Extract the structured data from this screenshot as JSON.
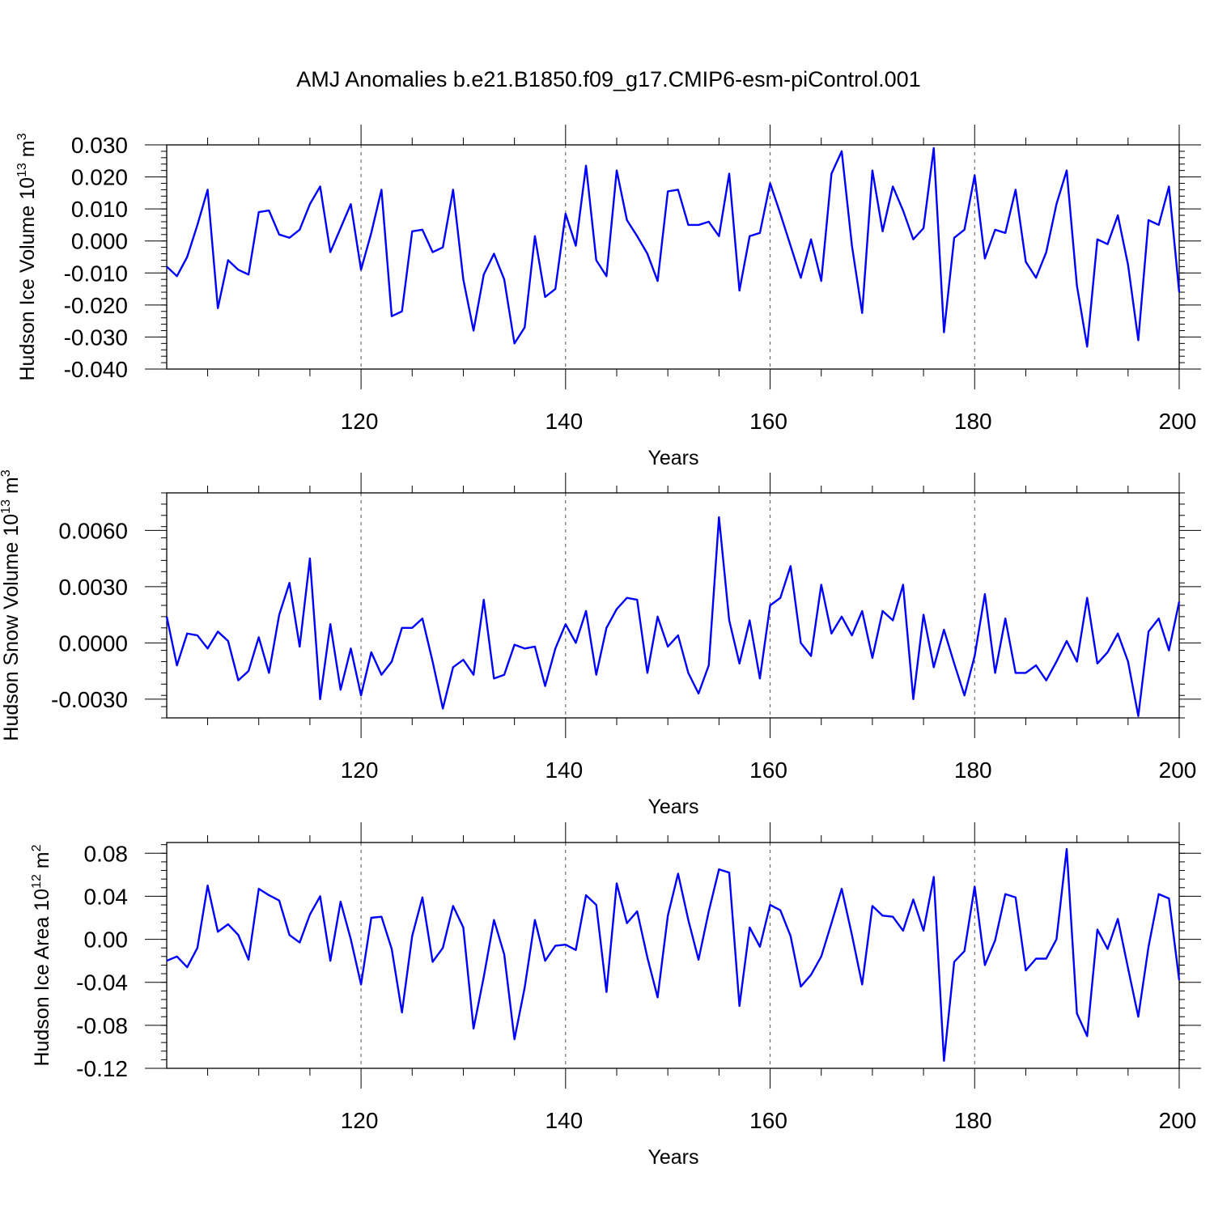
{
  "title": "AMJ Anomalies b.e21.B1850.f09_g17.CMIP6-esm-piControl.001",
  "chart_data": [
    {
      "type": "line",
      "name": "ice-volume",
      "ylabel": {
        "main": "Hudson Ice Volume 10",
        "exp": "13",
        "unit": " m",
        "unit_exp": "3"
      },
      "xlabel": "Years",
      "xlim": [
        101,
        200
      ],
      "xticks": [
        120,
        140,
        160,
        180,
        200
      ],
      "ylim": [
        -0.04,
        0.03
      ],
      "yticks": [
        "0.030",
        "0.020",
        "0.010",
        "0.000",
        "-0.010",
        "-0.020",
        "-0.030",
        "-0.040"
      ],
      "ytick_values": [
        0.03,
        0.02,
        0.01,
        0.0,
        -0.01,
        -0.02,
        -0.03,
        -0.04
      ],
      "grid": "dashed vertical at major x ticks",
      "color": "#0000ff",
      "x_start": 101,
      "values": [
        -0.008,
        -0.011,
        -0.005,
        0.005,
        0.016,
        -0.021,
        -0.006,
        -0.009,
        -0.0105,
        0.009,
        0.0095,
        0.002,
        0.001,
        0.0035,
        0.0115,
        0.017,
        -0.0035,
        0.004,
        0.0115,
        -0.009,
        0.0025,
        0.016,
        -0.0235,
        -0.022,
        0.003,
        0.0035,
        -0.0035,
        -0.002,
        0.016,
        -0.012,
        -0.028,
        -0.0105,
        -0.004,
        -0.012,
        -0.032,
        -0.027,
        0.0015,
        -0.0175,
        -0.015,
        0.0085,
        -0.0015,
        0.0235,
        -0.006,
        -0.011,
        0.022,
        0.0065,
        0.0015,
        -0.004,
        -0.0125,
        0.0155,
        0.016,
        0.005,
        0.005,
        0.006,
        0.0015,
        0.021,
        -0.0155,
        0.0015,
        0.0025,
        0.018,
        0.0085,
        -0.0015,
        -0.0115,
        0.0005,
        -0.0125,
        0.021,
        0.028,
        -0.0015,
        -0.0225,
        0.022,
        0.003,
        0.017,
        0.0095,
        0.0005,
        0.004,
        0.029,
        -0.0285,
        0.001,
        0.0035,
        0.0205,
        -0.0055,
        0.0035,
        0.0025,
        0.016,
        -0.0065,
        -0.0115,
        -0.0035,
        0.0115,
        0.022,
        -0.014,
        -0.033,
        0.0005,
        -0.001,
        0.008,
        -0.0075,
        -0.031,
        0.0065,
        0.005,
        0.017,
        -0.016
      ]
    },
    {
      "type": "line",
      "name": "snow-volume",
      "ylabel": {
        "main": "Hudson Snow Volume 10",
        "exp": "13",
        "unit": " m",
        "unit_exp": "3"
      },
      "xlabel": "Years",
      "xlim": [
        101,
        200
      ],
      "xticks": [
        120,
        140,
        160,
        180,
        200
      ],
      "ylim": [
        -0.004,
        0.008
      ],
      "yticks": [
        "0.0060",
        "0.0030",
        "0.0000",
        "-0.0030"
      ],
      "ytick_values": [
        0.006,
        0.003,
        0.0,
        -0.003
      ],
      "grid": "dashed vertical at major x ticks",
      "color": "#0000ff",
      "x_start": 101,
      "values": [
        0.0014,
        -0.0012,
        0.0005,
        0.0004,
        -0.0003,
        0.0006,
        0.0001,
        -0.002,
        -0.0015,
        0.0003,
        -0.0016,
        0.0015,
        0.0032,
        -0.0002,
        0.0045,
        -0.003,
        0.001,
        -0.0025,
        -0.0003,
        -0.0028,
        -0.0005,
        -0.0017,
        -0.001,
        0.0008,
        0.0008,
        0.0013,
        -0.001,
        -0.0035,
        -0.0013,
        -0.0009,
        -0.0017,
        0.0023,
        -0.0019,
        -0.0017,
        -0.0001,
        -0.0003,
        -0.0002,
        -0.0023,
        -0.0003,
        0.001,
        0.0,
        0.0017,
        -0.0017,
        0.0008,
        0.0018,
        0.0024,
        0.0023,
        -0.0016,
        0.0014,
        -0.0002,
        0.0004,
        -0.0016,
        -0.0027,
        -0.0012,
        0.0067,
        0.0012,
        -0.0011,
        0.0012,
        -0.0019,
        0.002,
        0.0024,
        0.0041,
        0.0,
        -0.0007,
        0.0031,
        0.0005,
        0.0014,
        0.0004,
        0.0017,
        -0.0008,
        0.0017,
        0.0012,
        0.0031,
        -0.003,
        0.0015,
        -0.0013,
        0.0007,
        -0.0011,
        -0.0028,
        -0.0007,
        0.0026,
        -0.0016,
        0.0013,
        -0.0016,
        -0.0016,
        -0.0012,
        -0.002,
        -0.001,
        0.0001,
        -0.001,
        0.0024,
        -0.0011,
        -0.0005,
        0.0005,
        -0.001,
        -0.0039,
        0.0006,
        0.0013,
        -0.0004,
        0.0022
      ]
    },
    {
      "type": "line",
      "name": "ice-area",
      "ylabel": {
        "main": "Hudson Ice Area 10",
        "exp": "12",
        "unit": " m",
        "unit_exp": "2"
      },
      "xlabel": "Years",
      "xlim": [
        101,
        200
      ],
      "xticks": [
        120,
        140,
        160,
        180,
        200
      ],
      "ylim": [
        -0.12,
        0.09
      ],
      "yticks": [
        "0.08",
        "0.04",
        "0.00",
        "-0.04",
        "-0.08",
        "-0.12"
      ],
      "ytick_values": [
        0.08,
        0.04,
        0.0,
        -0.04,
        -0.08,
        -0.12
      ],
      "grid": "dashed vertical at major x ticks",
      "color": "#0000ff",
      "x_start": 101,
      "values": [
        -0.02,
        -0.016,
        -0.026,
        -0.008,
        0.05,
        0.007,
        0.014,
        0.004,
        -0.019,
        0.047,
        0.041,
        0.036,
        0.004,
        -0.003,
        0.023,
        0.04,
        -0.02,
        0.035,
        0.0,
        -0.042,
        0.02,
        0.021,
        -0.009,
        -0.068,
        0.003,
        0.039,
        -0.021,
        -0.008,
        0.031,
        0.011,
        -0.083,
        -0.035,
        0.018,
        -0.014,
        -0.093,
        -0.045,
        0.018,
        -0.02,
        -0.006,
        -0.005,
        -0.01,
        0.041,
        0.032,
        -0.049,
        0.052,
        0.015,
        0.026,
        -0.017,
        -0.054,
        0.022,
        0.061,
        0.018,
        -0.019,
        0.026,
        0.065,
        0.062,
        -0.062,
        0.011,
        -0.007,
        0.032,
        0.027,
        0.003,
        -0.044,
        -0.033,
        -0.016,
        0.015,
        0.047,
        0.004,
        -0.042,
        0.031,
        0.022,
        0.021,
        0.008,
        0.037,
        0.008,
        0.058,
        -0.113,
        -0.021,
        -0.011,
        0.049,
        -0.024,
        -0.001,
        0.042,
        0.039,
        -0.029,
        -0.018,
        -0.018,
        0.0,
        0.084,
        -0.069,
        -0.09,
        0.009,
        -0.009,
        0.019,
        -0.027,
        -0.072,
        -0.007,
        0.042,
        0.038,
        -0.038
      ]
    }
  ]
}
